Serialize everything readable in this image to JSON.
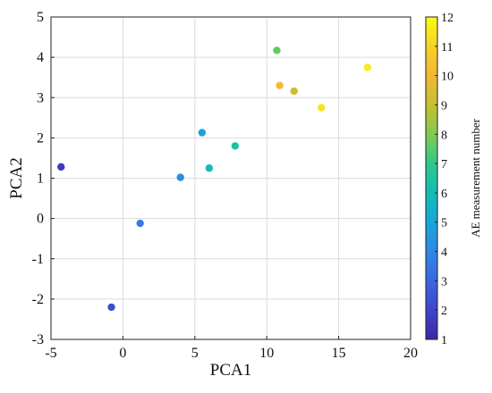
{
  "chart_data": {
    "type": "scatter",
    "title": "",
    "xlabel": "PCA1",
    "ylabel": "PCA2",
    "xlim": [
      -5,
      20
    ],
    "ylim": [
      -3,
      5
    ],
    "xticks": [
      -5,
      0,
      5,
      10,
      15,
      20
    ],
    "yticks": [
      -3,
      -2,
      -1,
      0,
      1,
      2,
      3,
      4,
      5
    ],
    "grid": true,
    "colorbar": {
      "label": "AE measurement number",
      "range": [
        1,
        12
      ],
      "ticks": [
        1,
        2,
        3,
        4,
        5,
        6,
        7,
        8,
        9,
        10,
        11,
        12
      ],
      "colormap": [
        "#3e26a8",
        "#4145ca",
        "#3b67e0",
        "#2f88e8",
        "#19a7d5",
        "#12bcb6",
        "#2ec98b",
        "#82ca4f",
        "#c5c02f",
        "#f1b834",
        "#f8d124",
        "#f9fb15"
      ]
    },
    "points": [
      {
        "x": -4.3,
        "y": 1.28,
        "c": 1.6
      },
      {
        "x": -0.8,
        "y": -2.2,
        "c": 2.2
      },
      {
        "x": 1.2,
        "y": -0.12,
        "c": 3.6
      },
      {
        "x": 4.0,
        "y": 1.02,
        "c": 4.2
      },
      {
        "x": 5.5,
        "y": 2.13,
        "c": 4.8
      },
      {
        "x": 6.0,
        "y": 1.25,
        "c": 5.9
      },
      {
        "x": 7.8,
        "y": 1.8,
        "c": 6.4
      },
      {
        "x": 10.7,
        "y": 4.17,
        "c": 7.6
      },
      {
        "x": 10.9,
        "y": 3.3,
        "c": 10.1
      },
      {
        "x": 11.9,
        "y": 3.16,
        "c": 9.2
      },
      {
        "x": 13.8,
        "y": 2.75,
        "c": 11.4
      },
      {
        "x": 17.0,
        "y": 3.75,
        "c": 11.6
      }
    ]
  }
}
